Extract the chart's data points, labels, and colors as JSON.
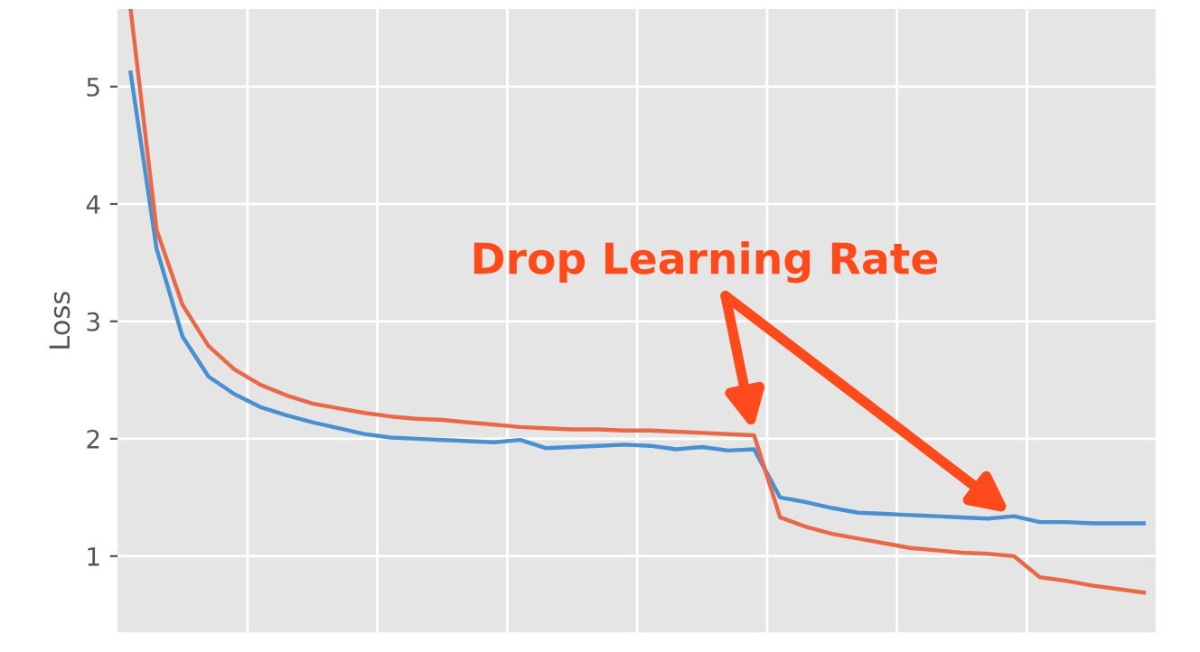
{
  "chart_data": {
    "type": "line",
    "ylabel": "Loss",
    "annotations": [
      "Drop Learning Rate"
    ],
    "categories": [
      null,
      null,
      null,
      null,
      null,
      null,
      null,
      null,
      null,
      null,
      null,
      null,
      null,
      null,
      null,
      null,
      null,
      null,
      null,
      null,
      null,
      null,
      null,
      null,
      null,
      null,
      null,
      null,
      null,
      null,
      null,
      null,
      null,
      null,
      null,
      null,
      null,
      null,
      null,
      null
    ],
    "ylim": [
      0.35,
      5.66
    ],
    "yticks": [
      1,
      2,
      3,
      4,
      5
    ],
    "grid": true,
    "series": [
      {
        "color": "#4a8fcf",
        "values": [
          5.12,
          3.62,
          2.87,
          2.53,
          2.38,
          2.27,
          2.2,
          2.14,
          2.09,
          2.04,
          2.01,
          2.0,
          1.99,
          1.98,
          1.97,
          1.99,
          1.92,
          1.93,
          1.94,
          1.95,
          1.94,
          1.91,
          1.93,
          1.9,
          1.91,
          1.5,
          1.46,
          1.41,
          1.37,
          1.36,
          1.35,
          1.34,
          1.33,
          1.32,
          1.34,
          1.29,
          1.29,
          1.28,
          1.28,
          1.28
        ]
      },
      {
        "color": "#e8694a",
        "values": [
          5.66,
          3.78,
          3.14,
          2.79,
          2.59,
          2.46,
          2.37,
          2.3,
          2.26,
          2.22,
          2.19,
          2.17,
          2.16,
          2.14,
          2.12,
          2.1,
          2.09,
          2.08,
          2.08,
          2.07,
          2.07,
          2.06,
          2.05,
          2.04,
          2.03,
          1.33,
          1.25,
          1.19,
          1.15,
          1.11,
          1.07,
          1.05,
          1.03,
          1.02,
          1.0,
          0.82,
          0.79,
          0.75,
          0.72,
          0.69
        ]
      }
    ]
  }
}
